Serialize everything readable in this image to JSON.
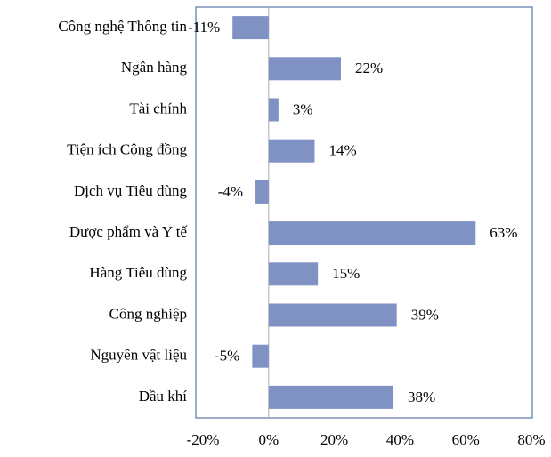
{
  "chart_data": {
    "type": "bar",
    "orientation": "horizontal",
    "categories": [
      "Công nghệ Thông tin",
      "Ngân hàng",
      "Tài chính",
      "Tiện ích Cộng đồng",
      "Dịch vụ Tiêu dùng",
      "Dược phẩm và Y tế",
      "Hàng Tiêu dùng",
      "Công nghiệp",
      "Nguyên vật liệu",
      "Dầu khí"
    ],
    "values": [
      -11,
      22,
      3,
      14,
      -4,
      63,
      15,
      39,
      -5,
      38
    ],
    "value_labels": [
      "-11%",
      "22%",
      "3%",
      "14%",
      "-4%",
      "63%",
      "15%",
      "39%",
      "-5%",
      "38%"
    ],
    "color": "#8092c3",
    "xlim": [
      -20,
      80
    ],
    "xticks": [
      {
        "value": -20,
        "label": "-20%"
      },
      {
        "value": 0,
        "label": "0%"
      },
      {
        "value": 20,
        "label": "20%"
      },
      {
        "value": 40,
        "label": "40%"
      },
      {
        "value": 60,
        "label": "60%"
      },
      {
        "value": 80,
        "label": "80%"
      }
    ]
  }
}
